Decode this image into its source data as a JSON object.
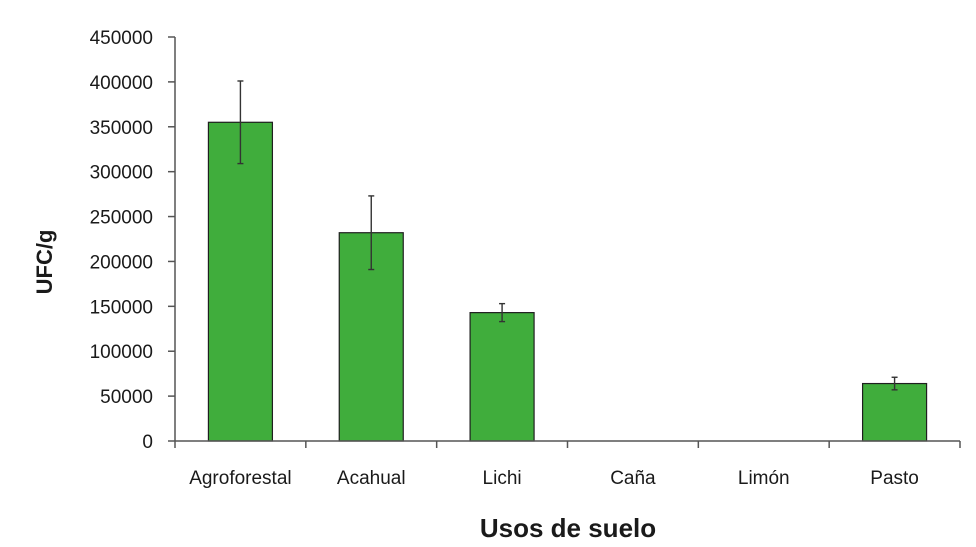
{
  "chart_data": {
    "type": "bar",
    "title": "",
    "xlabel": "Usos de suelo",
    "ylabel": "UFC/g",
    "categories": [
      "Agroforestal",
      "Acahual",
      "Lichi",
      "Caña",
      "Limón",
      "Pasto"
    ],
    "values": [
      355000,
      232000,
      143000,
      0,
      0,
      64000
    ],
    "error": [
      46000,
      41000,
      10000,
      0,
      0,
      7000
    ],
    "ylim": [
      0,
      450000
    ],
    "yticks": [
      "0",
      "50000",
      "100000",
      "150000",
      "200000",
      "250000",
      "300000",
      "350000",
      "400000",
      "450000"
    ],
    "grid": false,
    "legend": "none",
    "bar_color": "#40ad3c",
    "bar_edge_color": "#1f1f1f",
    "axis_color": "#555555"
  }
}
